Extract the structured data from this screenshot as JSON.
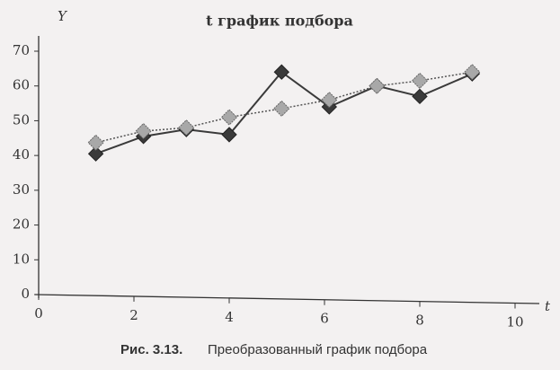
{
  "chart_data": {
    "type": "line",
    "title": "t график подбора",
    "y_label": "Y",
    "x_label": "t",
    "caption_label": "Рис. 3.13.",
    "caption_text": "Преобразованный график подбора",
    "xlim": [
      0,
      10
    ],
    "xticks": [
      0,
      2,
      4,
      6,
      8,
      10
    ],
    "ylim": [
      0,
      70
    ],
    "yticks": [
      0,
      10,
      20,
      30,
      40,
      50,
      60,
      70
    ],
    "grid": false,
    "series": [
      {
        "color": "#3a3a3a",
        "line_style": "solid",
        "marker": "diamond",
        "x": [
          1.2,
          2.2,
          3.1,
          4,
          5.1,
          6.1,
          7.1,
          8,
          9.1
        ],
        "values": [
          40.5,
          45.5,
          47.5,
          46,
          64,
          54,
          60,
          57,
          63.5
        ]
      },
      {
        "color": "#a8a8a8",
        "line_style": "dotted",
        "marker": "square",
        "x": [
          1.2,
          2.2,
          3.1,
          4,
          5.1,
          6.1,
          7.1,
          8,
          9.1
        ],
        "values": [
          43.7,
          47,
          48,
          51,
          53.5,
          56,
          60,
          61.5,
          64
        ]
      }
    ]
  }
}
